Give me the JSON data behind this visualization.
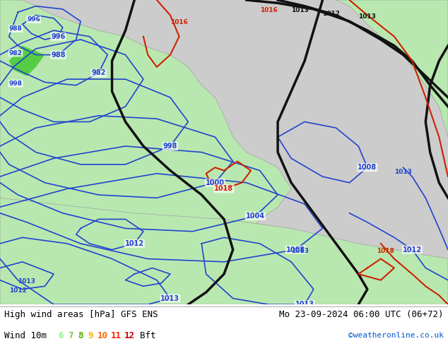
{
  "title_left": "High wind areas [hPa] GFS ENS",
  "title_right": "Mo 23-09-2024 06:00 UTC (06+72)",
  "subtitle_left": "Wind 10m",
  "legend_numbers": [
    "6",
    "7",
    "8",
    "9",
    "10",
    "11",
    "12"
  ],
  "legend_colors": [
    "#90EE90",
    "#7EC850",
    "#55AA00",
    "#FFAA00",
    "#FF6600",
    "#FF2200",
    "#CC0000"
  ],
  "legend_suffix": "Bft",
  "copyright": "©weatheronline.co.uk",
  "bg_color": "#d0d0d0",
  "map_bg_light": "#e8f5e9",
  "map_bg_land": "#c8e6c9",
  "text_color": "#000000",
  "copyright_color": "#0055cc",
  "footer_bg": "#ffffff",
  "figsize": [
    6.34,
    4.9
  ],
  "dpi": 100
}
